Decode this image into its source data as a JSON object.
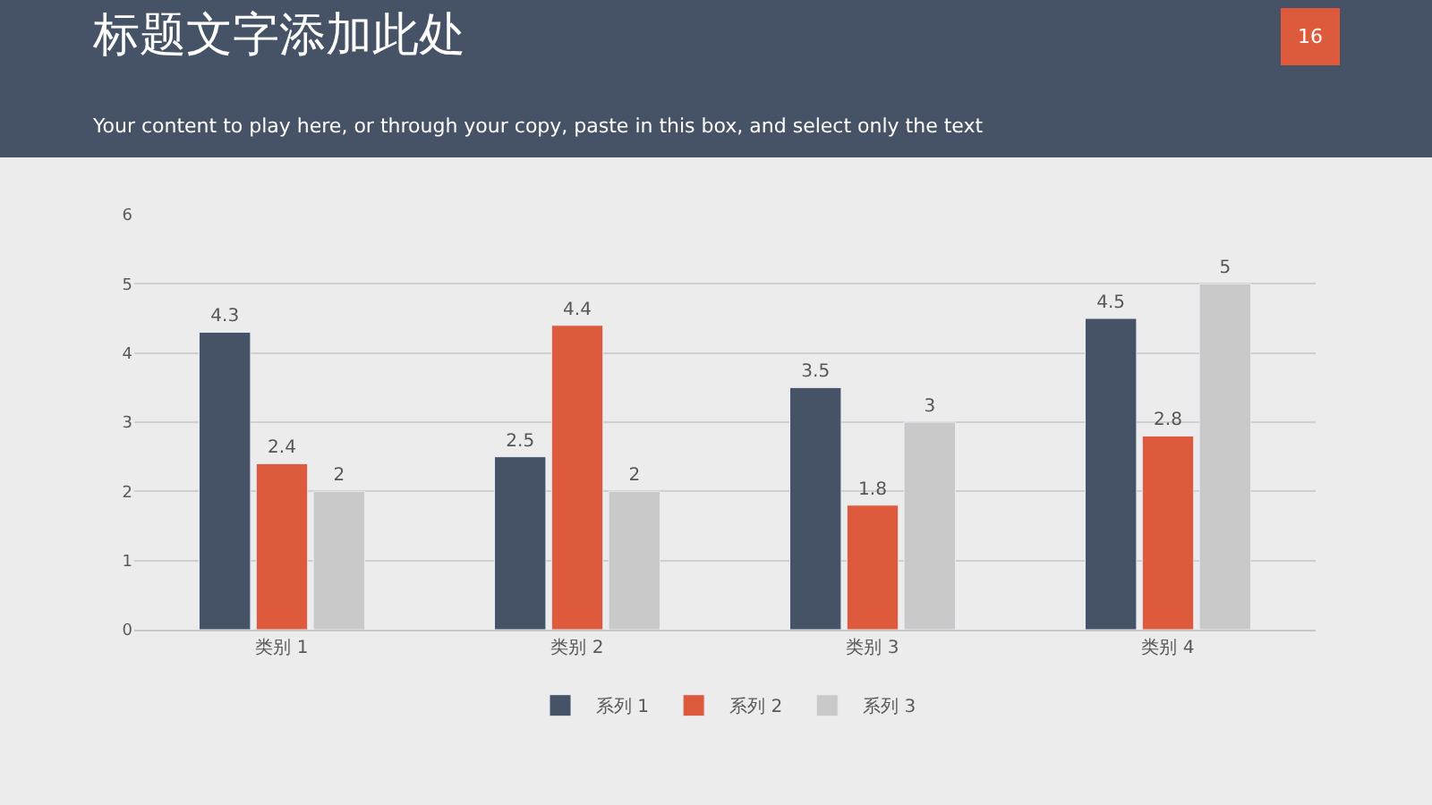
{
  "chart_data": {
    "type": "bar",
    "title": "标题文字添加此处",
    "subtitle": "Your content to play here, or through your copy, paste in this box, and select only the text",
    "annotations": [
      "16"
    ],
    "categories": [
      "类别 1",
      "类别 2",
      "类别 3",
      "类别 4"
    ],
    "series": [
      {
        "name": "系列 1",
        "color": "#465265",
        "values": [
          4.3,
          2.5,
          3.5,
          4.5
        ]
      },
      {
        "name": "系列 2",
        "color": "#dd5b3c",
        "values": [
          2.4,
          4.4,
          1.8,
          2.8
        ]
      },
      {
        "name": "系列 3",
        "color": "#c9c9c9",
        "values": [
          2,
          2,
          3,
          5
        ]
      }
    ],
    "ylim": [
      0,
      6
    ],
    "yticks": [
      0,
      1,
      2,
      3,
      4,
      5,
      6
    ],
    "grid": "y",
    "legend": "bottom",
    "data_labels": true
  }
}
